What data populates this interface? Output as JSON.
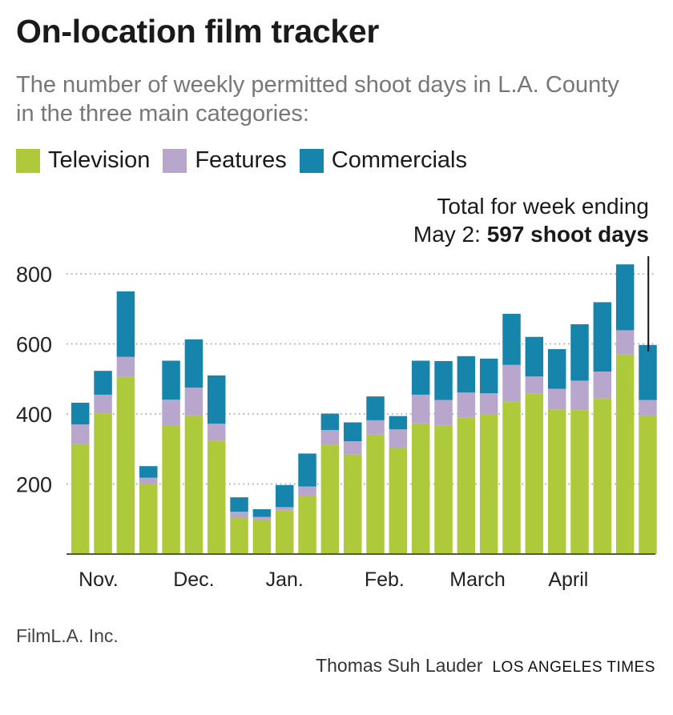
{
  "title": "On-location film tracker",
  "subtitle": "The number of weekly permitted shoot days in L.A. County in the three main categories:",
  "source": "FilmL.A. Inc.",
  "byline": "Thomas Suh Lauder",
  "brand": "LOS ANGELES TIMES",
  "colors": {
    "television": "#aec93a",
    "features": "#b9a6cc",
    "commercials": "#1784ab",
    "gridline": "#999999",
    "axis": "#555555"
  },
  "chart_data": {
    "type": "bar",
    "stacked": true,
    "title": "On-location film tracker",
    "xlabel": "",
    "ylabel": "",
    "ylim": [
      0,
      800
    ],
    "yticks": [
      200,
      400,
      600,
      800
    ],
    "grid": true,
    "legend_position": "top-left",
    "month_labels": [
      {
        "label": "Nov.",
        "index": 0.8
      },
      {
        "label": "Dec.",
        "index": 5
      },
      {
        "label": "Jan.",
        "index": 9
      },
      {
        "label": "Feb.",
        "index": 13.4
      },
      {
        "label": "March",
        "index": 17.5
      },
      {
        "label": "April",
        "index": 21.5
      }
    ],
    "series": [
      {
        "name": "Television",
        "values": [
          314,
          402,
          506,
          200,
          367,
          394,
          324,
          104,
          97,
          124,
          167,
          311,
          285,
          341,
          303,
          373,
          366,
          390,
          399,
          436,
          459,
          413,
          411,
          444,
          570,
          394
        ]
      },
      {
        "name": "Features",
        "values": [
          56,
          53,
          57,
          18,
          74,
          81,
          48,
          17,
          9,
          10,
          26,
          43,
          37,
          41,
          53,
          82,
          74,
          71,
          60,
          104,
          48,
          59,
          84,
          77,
          69,
          46
        ]
      },
      {
        "name": "Commercials",
        "values": [
          62,
          68,
          187,
          33,
          111,
          138,
          138,
          41,
          22,
          63,
          94,
          47,
          54,
          68,
          38,
          97,
          111,
          104,
          99,
          146,
          113,
          113,
          161,
          198,
          188,
          157
        ]
      }
    ],
    "annotation": {
      "line1": "Total for week ending",
      "line2_prefix": "May 2: ",
      "line2_bold": "597 shoot days",
      "bar_index": 25
    }
  }
}
